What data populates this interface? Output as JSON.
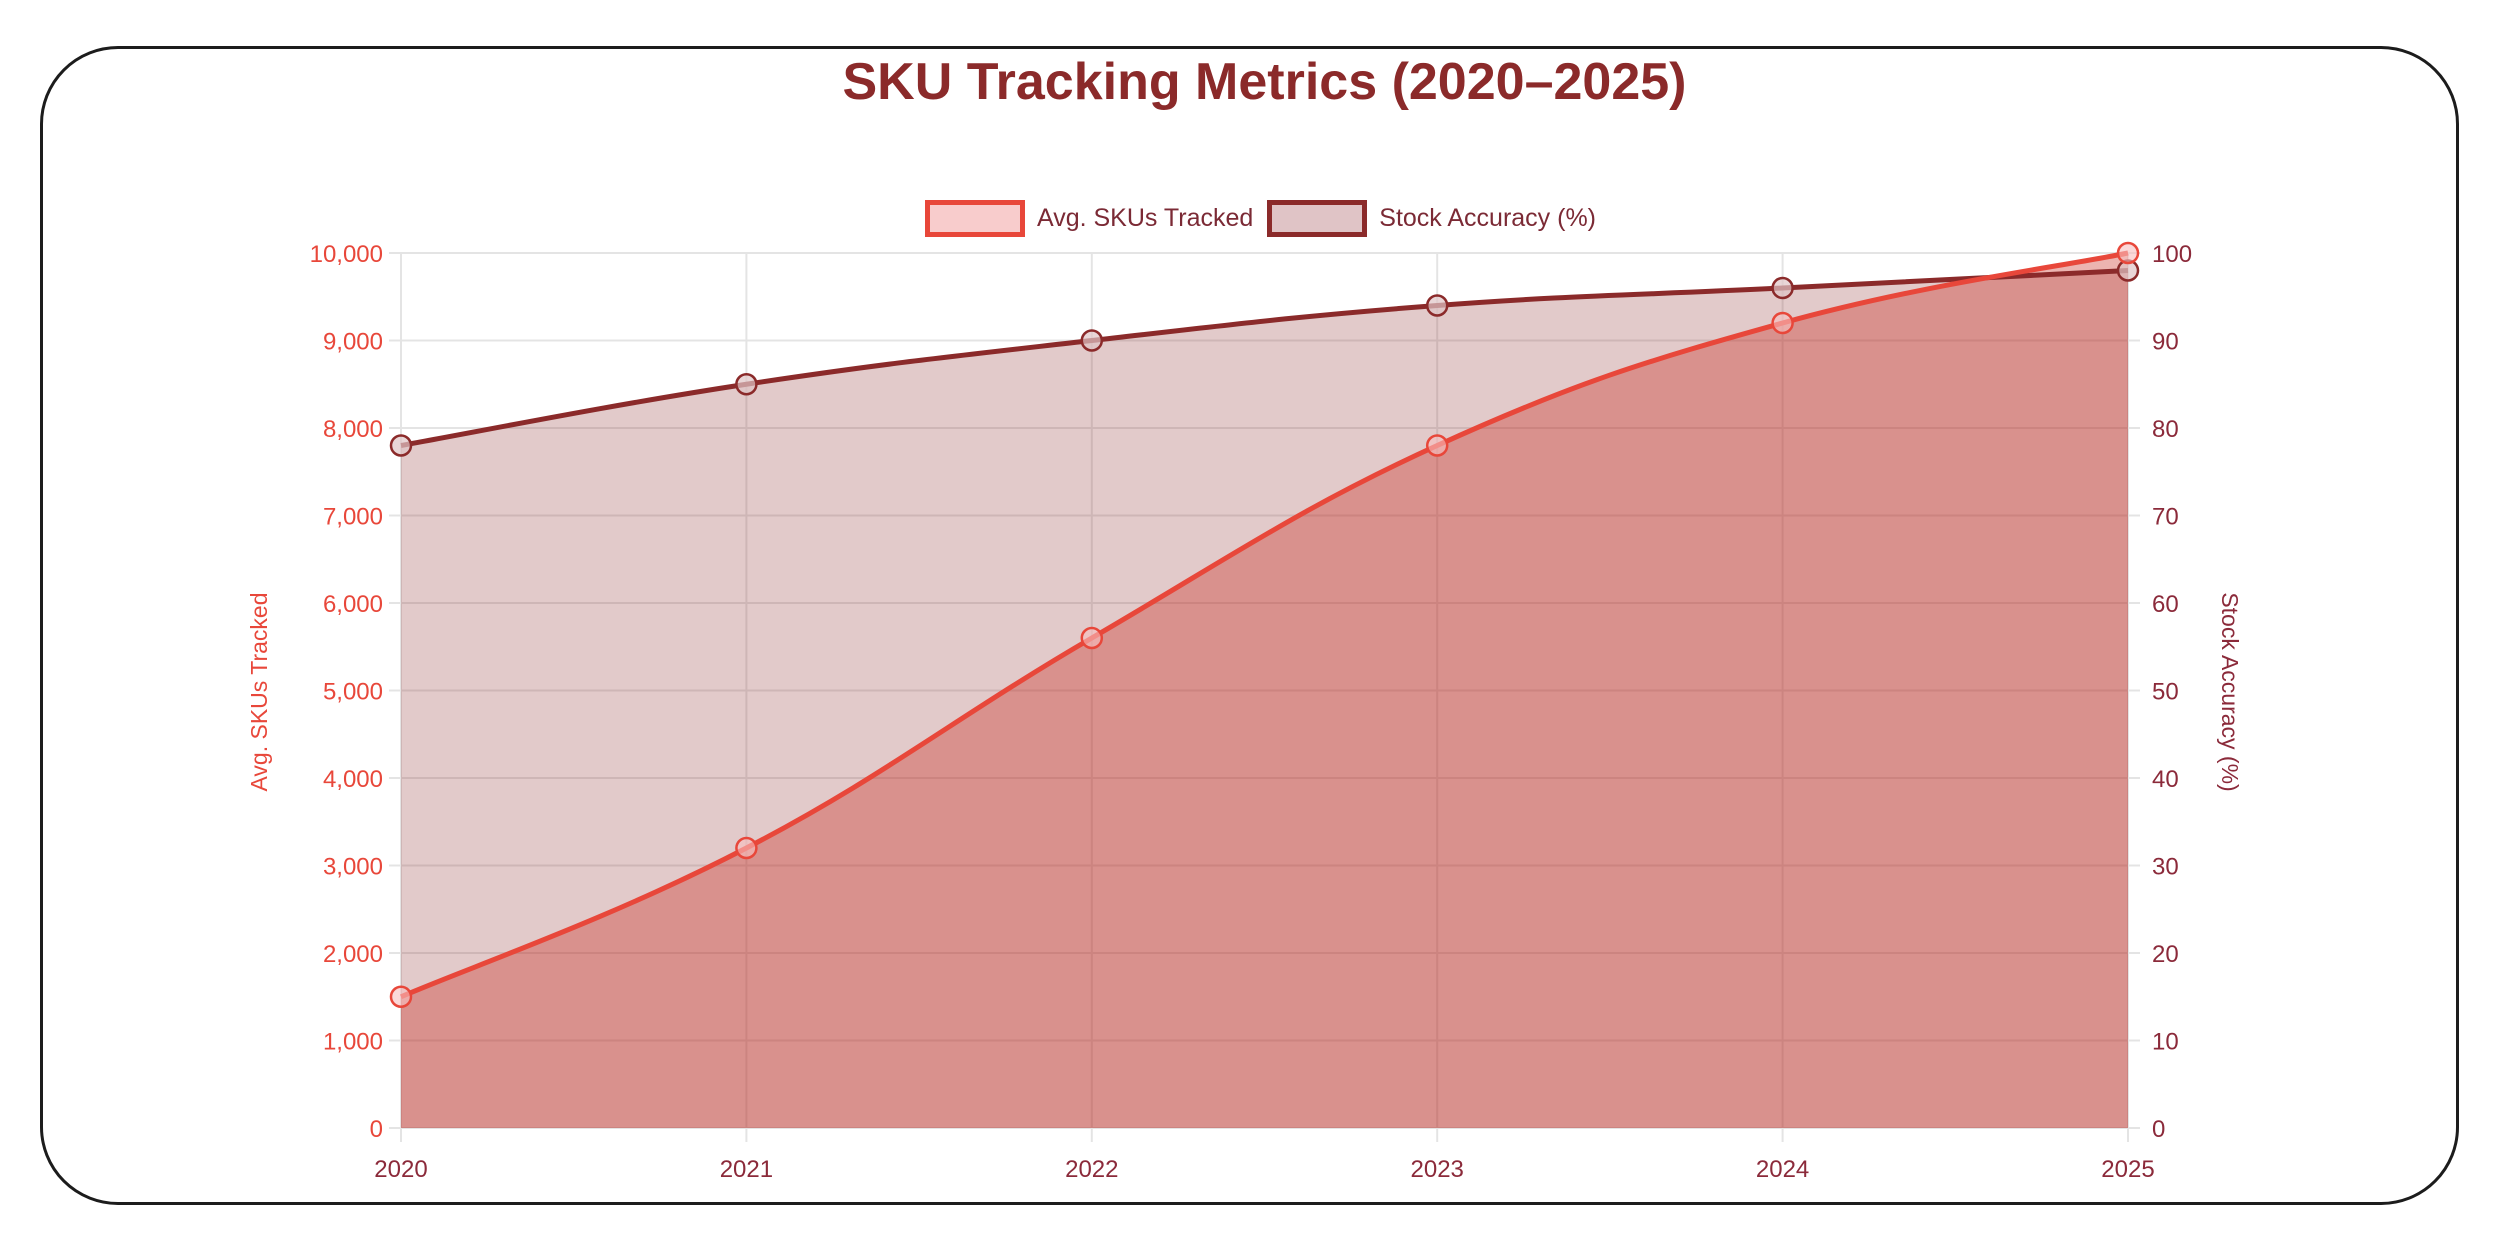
{
  "chart": {
    "title": "SKU Tracking Metrics (2020–2025)",
    "legend": [
      {
        "label": "Avg. SKUs Tracked",
        "border": "#e8473a",
        "fill": "#f8cccc"
      },
      {
        "label": "Stock Accuracy (%)",
        "border": "#8b2a2a",
        "fill": "#e0c4c6"
      }
    ],
    "left_axis_title": "Avg. SKUs Tracked",
    "right_axis_title": "Stock Accuracy (%)",
    "left_ticks": [
      "0",
      "1,000",
      "2,000",
      "3,000",
      "4,000",
      "5,000",
      "6,000",
      "7,000",
      "8,000",
      "9,000",
      "10,000"
    ],
    "right_ticks": [
      "0",
      "10",
      "20",
      "30",
      "40",
      "50",
      "60",
      "70",
      "80",
      "90",
      "100"
    ],
    "x_ticks": [
      "2020",
      "2021",
      "2022",
      "2023",
      "2024",
      "2025"
    ]
  },
  "chart_data": {
    "type": "line",
    "title": "SKU Tracking Metrics (2020–2025)",
    "categories": [
      "2020",
      "2021",
      "2022",
      "2023",
      "2024",
      "2025"
    ],
    "series": [
      {
        "name": "Avg. SKUs Tracked",
        "axis": "left",
        "values": [
          1500,
          3200,
          5600,
          7800,
          9200,
          10000
        ],
        "color": "#e8473a",
        "fill": "rgba(200,40,30,0.35)"
      },
      {
        "name": "Stock Accuracy (%)",
        "axis": "right",
        "values": [
          78,
          85,
          90,
          94,
          96,
          98
        ],
        "color": "#8b2a2a",
        "fill": "rgba(139,42,42,0.25)"
      }
    ],
    "xlabel": "",
    "ylabel": "Avg. SKUs Tracked",
    "y2label": "Stock Accuracy (%)",
    "ylim": [
      0,
      10000
    ],
    "y2lim": [
      0,
      100
    ],
    "grid": true,
    "legend_position": "top",
    "area_fill": true
  }
}
